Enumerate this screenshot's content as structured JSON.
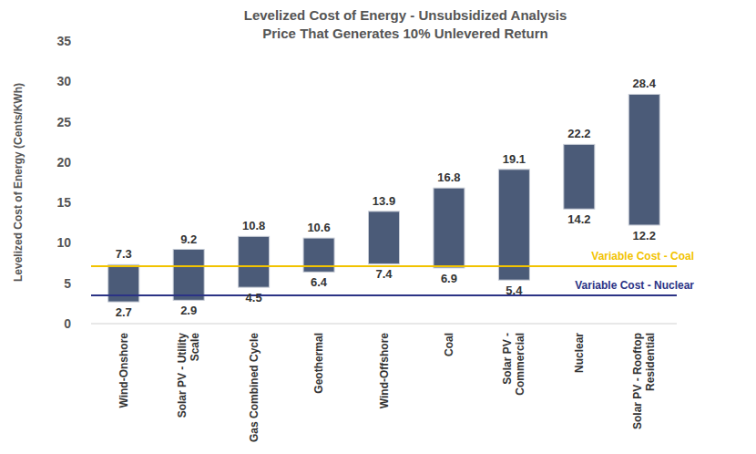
{
  "chart_data": {
    "type": "range_bar",
    "title": "Levelized Cost of Energy  - Unsubsidized Analysis",
    "subtitle": "Price That Generates 10% Unlevered Return",
    "y_label": "Levelized Cost of Energy (Cents/KWh)",
    "categories": [
      "Wind-Onshore",
      "Solar PV - Utility Scale",
      "Gas Combined Cycle",
      "Geothermal",
      "Wind-Offshore",
      "Coal",
      "Solar PV - Commercial",
      "Nuclear",
      "Solar PV - Rooftop Residential"
    ],
    "values": [
      [
        2.7,
        7.3
      ],
      [
        2.9,
        9.2
      ],
      [
        4.5,
        10.8
      ],
      [
        6.4,
        10.6
      ],
      [
        7.4,
        13.9
      ],
      [
        6.9,
        16.8
      ],
      [
        5.4,
        19.1
      ],
      [
        14.2,
        22.2
      ],
      [
        12.2,
        28.4
      ]
    ],
    "color": "#4b5b78",
    "data_labels": true,
    "ylim": [
      0,
      35
    ],
    "yticks": [
      0,
      5,
      10,
      15,
      20,
      25,
      30,
      35
    ],
    "grid": false,
    "reference_lines": [
      {
        "label": "Variable Cost - Coal",
        "value": 7.1,
        "color": "#f2c300"
      },
      {
        "label": "Variable Cost - Nuclear",
        "value": 3.5,
        "color": "#2b3385"
      }
    ]
  }
}
